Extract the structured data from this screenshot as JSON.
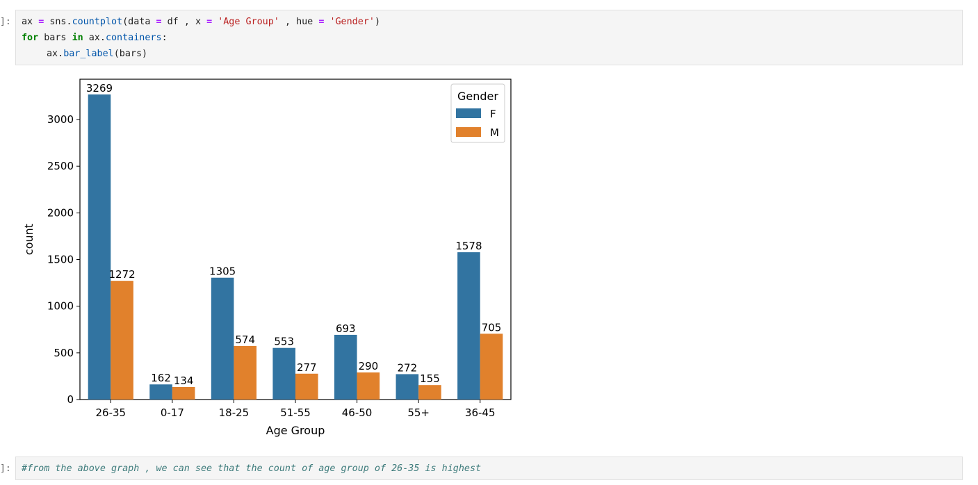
{
  "cells": {
    "code_prompt": "]:",
    "code_lines": [
      {
        "var": "ax",
        "eq": "=",
        "mod": "sns",
        "fn": "countplot",
        "open": "(data",
        "eq2": "=",
        "df": "df",
        "sep1": ",",
        "x": "x",
        "eq3": "=",
        "xval": "'Age Group'",
        "sep2": ",",
        "hue": "hue",
        "eq4": "=",
        "hueval": "'Gender'",
        "close": ")"
      },
      {
        "kw_for": "for",
        "bars": "bars",
        "kw_in": "in",
        "obj": "ax.",
        "attr": "containers",
        "colon": ":"
      },
      {
        "obj": "ax.",
        "attr": "bar_label",
        "args": "(bars)"
      }
    ],
    "markdown_prompt": "]:",
    "comment_text": "#from the above graph , we can see that the count of age group of 26-35 is highest"
  },
  "colors": {
    "F": "#3274a1",
    "M": "#e1812c"
  },
  "chart_data": {
    "type": "bar",
    "categories": [
      "26-35",
      "0-17",
      "18-25",
      "51-55",
      "46-50",
      "55+",
      "36-45"
    ],
    "series": [
      {
        "name": "F",
        "values": [
          3269,
          162,
          1305,
          553,
          693,
          272,
          1578
        ]
      },
      {
        "name": "M",
        "values": [
          1272,
          134,
          574,
          277,
          290,
          155,
          705
        ]
      }
    ],
    "xlabel": "Age Group",
    "ylabel": "count",
    "yticks": [
      0,
      500,
      1000,
      1500,
      2000,
      2500,
      3000
    ],
    "ylim": [
      0,
      3432
    ],
    "legend": {
      "title": "Gender",
      "position": "top-right"
    },
    "grid": false
  }
}
